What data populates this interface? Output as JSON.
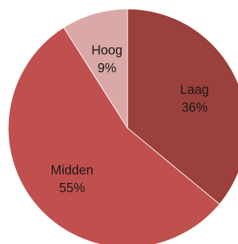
{
  "chart_data": {
    "type": "pie",
    "title": "",
    "slices": [
      {
        "label": "Laag",
        "value": 36,
        "value_label": "36%",
        "color": "#9c403d"
      },
      {
        "label": "Midden",
        "value": 55,
        "value_label": "55%",
        "color": "#c0504d"
      },
      {
        "label": "Hoog",
        "value": 9,
        "value_label": "9%",
        "color": "#d9a8a7"
      }
    ],
    "start_angle_deg": 0,
    "direction": "clockwise",
    "legend": "none",
    "labels_position": "inside"
  }
}
